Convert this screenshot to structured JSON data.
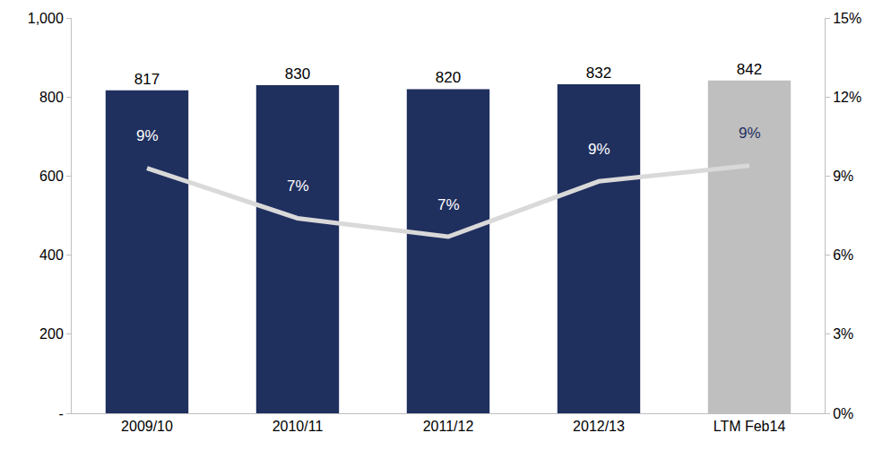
{
  "chart_data": {
    "type": "bar",
    "categories": [
      "2009/10",
      "2010/11",
      "2011/12",
      "2012/13",
      "LTM Feb14"
    ],
    "ylim": [
      0,
      1000
    ],
    "yticks": [
      {
        "value": 0,
        "label": "-"
      },
      200,
      400,
      600,
      800,
      {
        "value": 1000,
        "label": "1,000"
      }
    ],
    "y2lim": [
      0,
      15
    ],
    "y2ticks": [
      {
        "value": 0,
        "label": "0%"
      },
      {
        "value": 3,
        "label": "3%"
      },
      {
        "value": 6,
        "label": "6%"
      },
      {
        "value": 9,
        "label": "9%"
      },
      {
        "value": 12,
        "label": "12%"
      },
      {
        "value": 15,
        "label": "15%"
      }
    ],
    "grid": false,
    "data_labels": true,
    "series": [
      {
        "type": "bar",
        "colors": [
          "#1f2f5e",
          "#1f2f5e",
          "#1f2f5e",
          "#1f2f5e",
          "#bfbfbf"
        ],
        "values": [
          817,
          830,
          820,
          832,
          842
        ]
      },
      {
        "type": "line",
        "axis": "y2",
        "color": "#d9d9d9",
        "values": [
          9.3,
          7.4,
          6.7,
          8.8,
          9.4
        ],
        "value_labels": [
          "9%",
          "7%",
          "7%",
          "9%",
          "9%"
        ]
      }
    ]
  }
}
